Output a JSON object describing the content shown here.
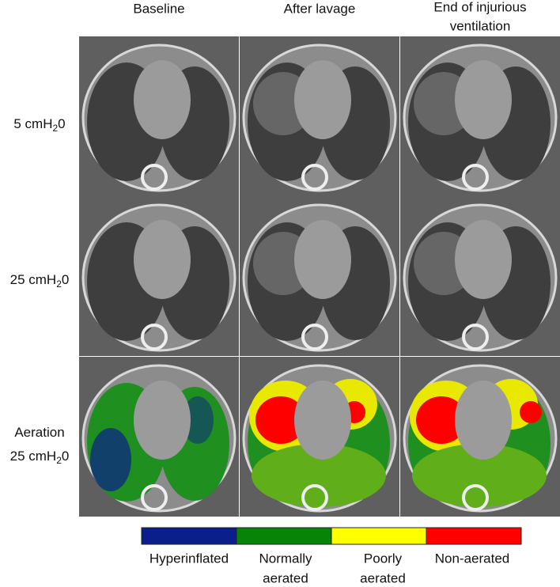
{
  "columns": [
    {
      "lines": [
        "Baseline"
      ]
    },
    {
      "lines": [
        "After lavage"
      ]
    },
    {
      "lines": [
        "End of injurious",
        "ventilation"
      ]
    }
  ],
  "rows": [
    {
      "lines": [
        {
          "text": "5 cmH",
          "sub": "2",
          "after": "0"
        }
      ]
    },
    {
      "lines": [
        {
          "text": "25 cmH",
          "sub": "2",
          "after": "0"
        }
      ]
    },
    {
      "lines": [
        {
          "text": "Aeration"
        },
        {
          "text": "25 cmH",
          "sub": "2",
          "after": "0"
        }
      ]
    }
  ],
  "legend": {
    "items": [
      {
        "lines": [
          "Hyperinflated"
        ],
        "color": "#0b1f8c"
      },
      {
        "lines": [
          "Normally",
          "aerated"
        ],
        "color": "#078307"
      },
      {
        "lines": [
          "Poorly",
          "aerated"
        ],
        "color": "#ffff00"
      },
      {
        "lines": [
          "Non-aerated"
        ],
        "color": "#ff0000"
      }
    ]
  }
}
